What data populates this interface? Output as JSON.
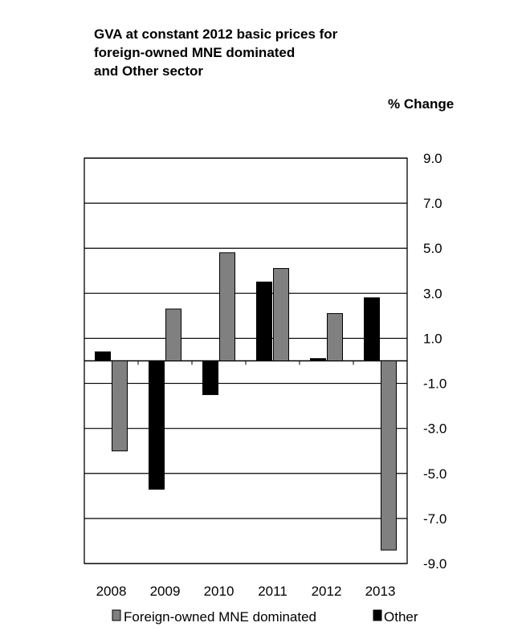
{
  "chart_data": {
    "type": "bar",
    "title_lines": [
      "GVA at constant 2012 basic prices for",
      "foreign-owned MNE dominated",
      "and Other sector"
    ],
    "unit_label": "% Change",
    "categories": [
      "2008",
      "2009",
      "2010",
      "2011",
      "2012",
      "2013"
    ],
    "series": [
      {
        "name": "Other",
        "color": "#000000",
        "values": [
          0.4,
          -5.7,
          -1.5,
          3.5,
          0.1,
          2.8
        ]
      },
      {
        "name": "Foreign-owned MNE dominated",
        "color": "#808080",
        "values": [
          -4.0,
          2.3,
          4.8,
          4.1,
          2.1,
          -8.4
        ]
      }
    ],
    "legend_order": [
      "Foreign-owned MNE dominated",
      "Other"
    ],
    "ylim": [
      -9.0,
      9.0
    ],
    "yticks": [
      "9.0",
      "7.0",
      "5.0",
      "3.0",
      "1.0",
      "-1.0",
      "-3.0",
      "-5.0",
      "-7.0",
      "-9.0"
    ],
    "grid": true,
    "legend_position": "bottom"
  }
}
